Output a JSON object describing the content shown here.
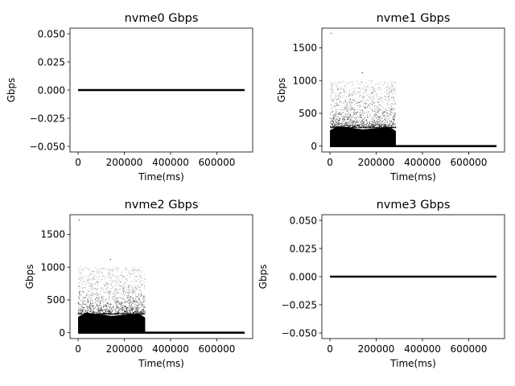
{
  "chart_data": [
    {
      "type": "scatter",
      "title": "nvme0 Gbps",
      "xlabel": "Time(ms)",
      "ylabel": "Gbps",
      "xlim": [
        -35000,
        755000
      ],
      "ylim": [
        -0.055,
        0.055
      ],
      "x_ticks": [
        0,
        200000,
        400000,
        600000
      ],
      "x_tick_labels": [
        "0",
        "200000",
        "400000",
        "600000"
      ],
      "y_ticks": [
        0.05,
        0.025,
        0.0,
        -0.025,
        -0.05
      ],
      "y_tick_labels": [
        "0.050",
        "0.025",
        "0.000",
        "−0.025",
        "−0.050"
      ],
      "grid": false,
      "series": [
        {
          "x_range": [
            0,
            720000
          ],
          "y_constant": 0,
          "burst": null
        }
      ]
    },
    {
      "type": "scatter",
      "title": "nvme1 Gbps",
      "xlabel": "Time(ms)",
      "ylabel": "Gbps",
      "xlim": [
        -35000,
        755000
      ],
      "ylim": [
        -90,
        1800
      ],
      "x_ticks": [
        0,
        200000,
        400000,
        600000
      ],
      "x_tick_labels": [
        "0",
        "200000",
        "400000",
        "600000"
      ],
      "y_ticks": [
        0,
        500,
        1000,
        1500
      ],
      "y_tick_labels": [
        "0",
        "500",
        "1000",
        "1500"
      ],
      "grid": false,
      "series": [
        {
          "x_range": [
            0,
            720000
          ],
          "y_constant": 0,
          "burst": {
            "x_range": [
              0,
              285000
            ],
            "dense_max": 280,
            "sparse_max": 1000
          },
          "outliers": [
            {
              "x": 5000,
              "y": 1720
            },
            {
              "x": 140000,
              "y": 1120
            }
          ]
        }
      ]
    },
    {
      "type": "scatter",
      "title": "nvme2 Gbps",
      "xlabel": "Time(ms)",
      "ylabel": "Gbps",
      "xlim": [
        -35000,
        755000
      ],
      "ylim": [
        -90,
        1800
      ],
      "x_ticks": [
        0,
        200000,
        400000,
        600000
      ],
      "x_tick_labels": [
        "0",
        "200000",
        "400000",
        "600000"
      ],
      "y_ticks": [
        0,
        500,
        1000,
        1500
      ],
      "y_tick_labels": [
        "0",
        "500",
        "1000",
        "1500"
      ],
      "grid": false,
      "series": [
        {
          "x_range": [
            0,
            720000
          ],
          "y_constant": 0,
          "burst": {
            "x_range": [
              0,
              290000
            ],
            "dense_max": 280,
            "sparse_max": 1000
          },
          "outliers": [
            {
              "x": 5000,
              "y": 1720
            },
            {
              "x": 140000,
              "y": 1120
            }
          ]
        }
      ]
    },
    {
      "type": "scatter",
      "title": "nvme3 Gbps",
      "xlabel": "Time(ms)",
      "ylabel": "Gbps",
      "xlim": [
        -35000,
        755000
      ],
      "ylim": [
        -0.055,
        0.055
      ],
      "x_ticks": [
        0,
        200000,
        400000,
        600000
      ],
      "x_tick_labels": [
        "0",
        "200000",
        "400000",
        "600000"
      ],
      "y_ticks": [
        0.05,
        0.025,
        0.0,
        -0.025,
        -0.05
      ],
      "y_tick_labels": [
        "0.050",
        "0.025",
        "0.000",
        "−0.025",
        "−0.050"
      ],
      "grid": false,
      "series": [
        {
          "x_range": [
            0,
            720000
          ],
          "y_constant": 0,
          "burst": null
        }
      ]
    }
  ],
  "colors": {
    "marker": "#000000",
    "axes": "#000000",
    "background": "#ffffff"
  }
}
